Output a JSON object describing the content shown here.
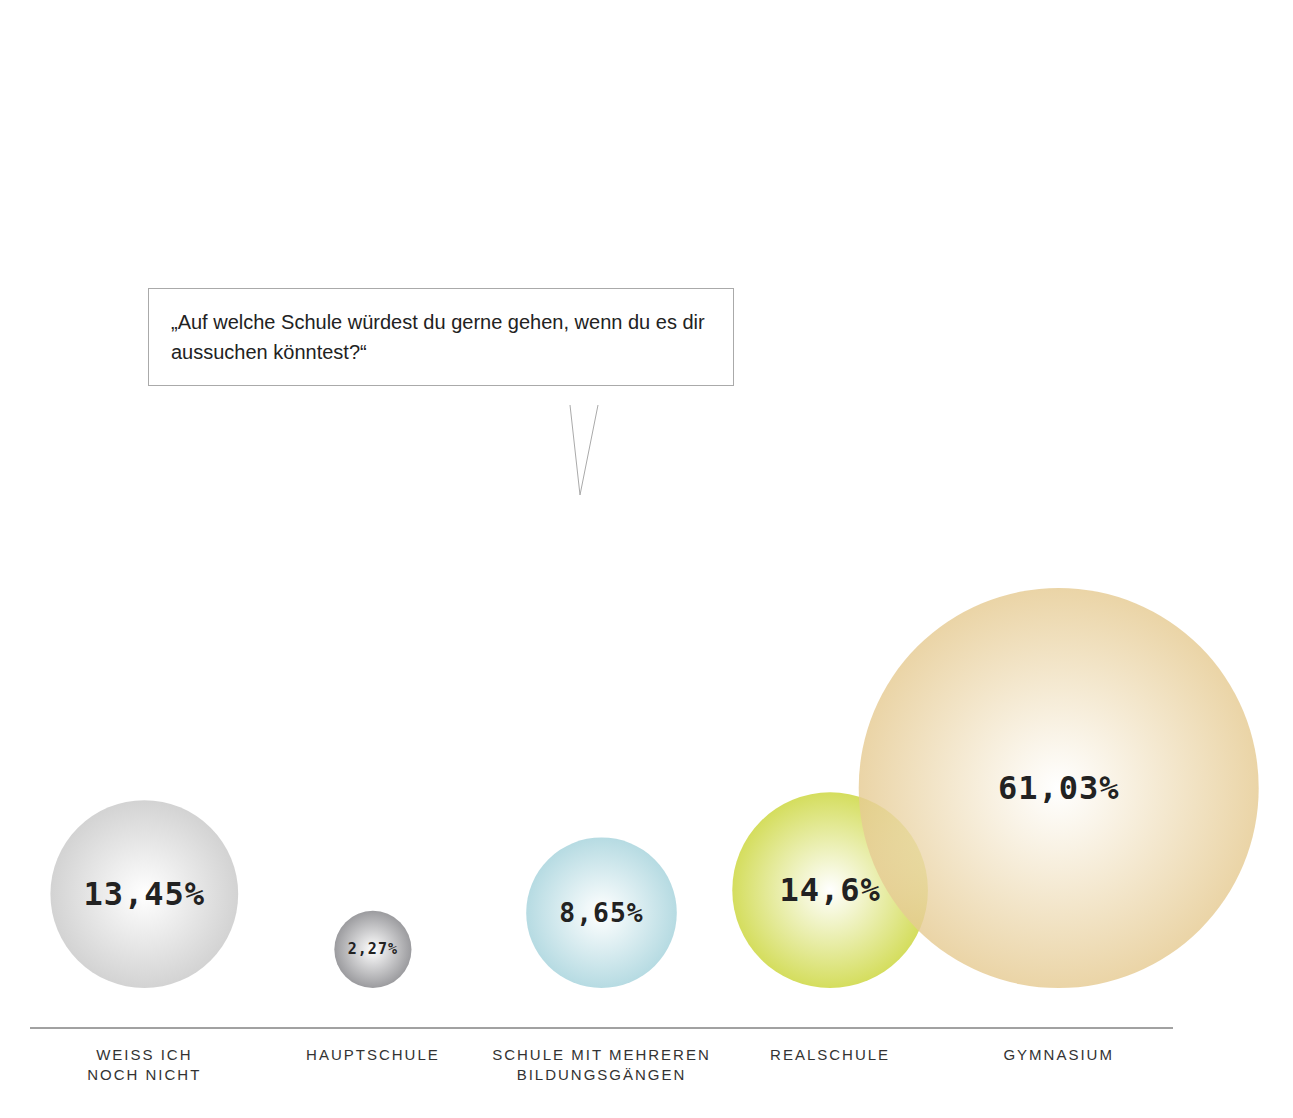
{
  "chart_data": {
    "type": "bubble",
    "title": "„Auf welche Schule würdest du gerne gehen, wenn du es dir aussuchen könntest?“",
    "categories": [
      "WEISS ICH NOCH NICHT",
      "HAUPTSCHULE",
      "SCHULE MIT MEHREREN BILDUNGSGÄNGEN",
      "REALSCHULE",
      "GYMNASIUM"
    ],
    "values": [
      13.45,
      2.27,
      8.65,
      14.6,
      61.03
    ],
    "value_labels": [
      "13,45%",
      "2,27%",
      "8,65%",
      "14,6%",
      "61,03%"
    ],
    "colors": [
      "#c9c9c9",
      "#858589",
      "#a6d3dc",
      "#cbd63a",
      "#e6cb93"
    ],
    "data_labels": true,
    "tick_labels": "x"
  }
}
